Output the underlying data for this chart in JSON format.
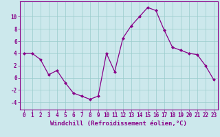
{
  "x": [
    0,
    1,
    2,
    3,
    4,
    5,
    6,
    7,
    8,
    9,
    10,
    11,
    12,
    13,
    14,
    15,
    16,
    17,
    18,
    19,
    20,
    21,
    22,
    23
  ],
  "y": [
    4.0,
    4.0,
    3.0,
    0.5,
    1.2,
    -0.8,
    -2.5,
    -3.0,
    -3.5,
    -3.0,
    4.0,
    1.0,
    6.5,
    8.5,
    10.0,
    11.5,
    11.0,
    7.8,
    5.0,
    4.5,
    4.0,
    3.8,
    2.0,
    -0.3
  ],
  "line_color": "#880088",
  "marker": "D",
  "marker_size": 2.0,
  "bg_color": "#cce8ec",
  "grid_color": "#99cccc",
  "xlabel": "Windchill (Refroidissement éolien,°C)",
  "xlabel_fontsize": 6.5,
  "tick_fontsize": 5.5,
  "ylim": [
    -5.2,
    12.5
  ],
  "yticks": [
    -4,
    -2,
    0,
    2,
    4,
    6,
    8,
    10
  ],
  "xlim": [
    -0.5,
    23.5
  ]
}
